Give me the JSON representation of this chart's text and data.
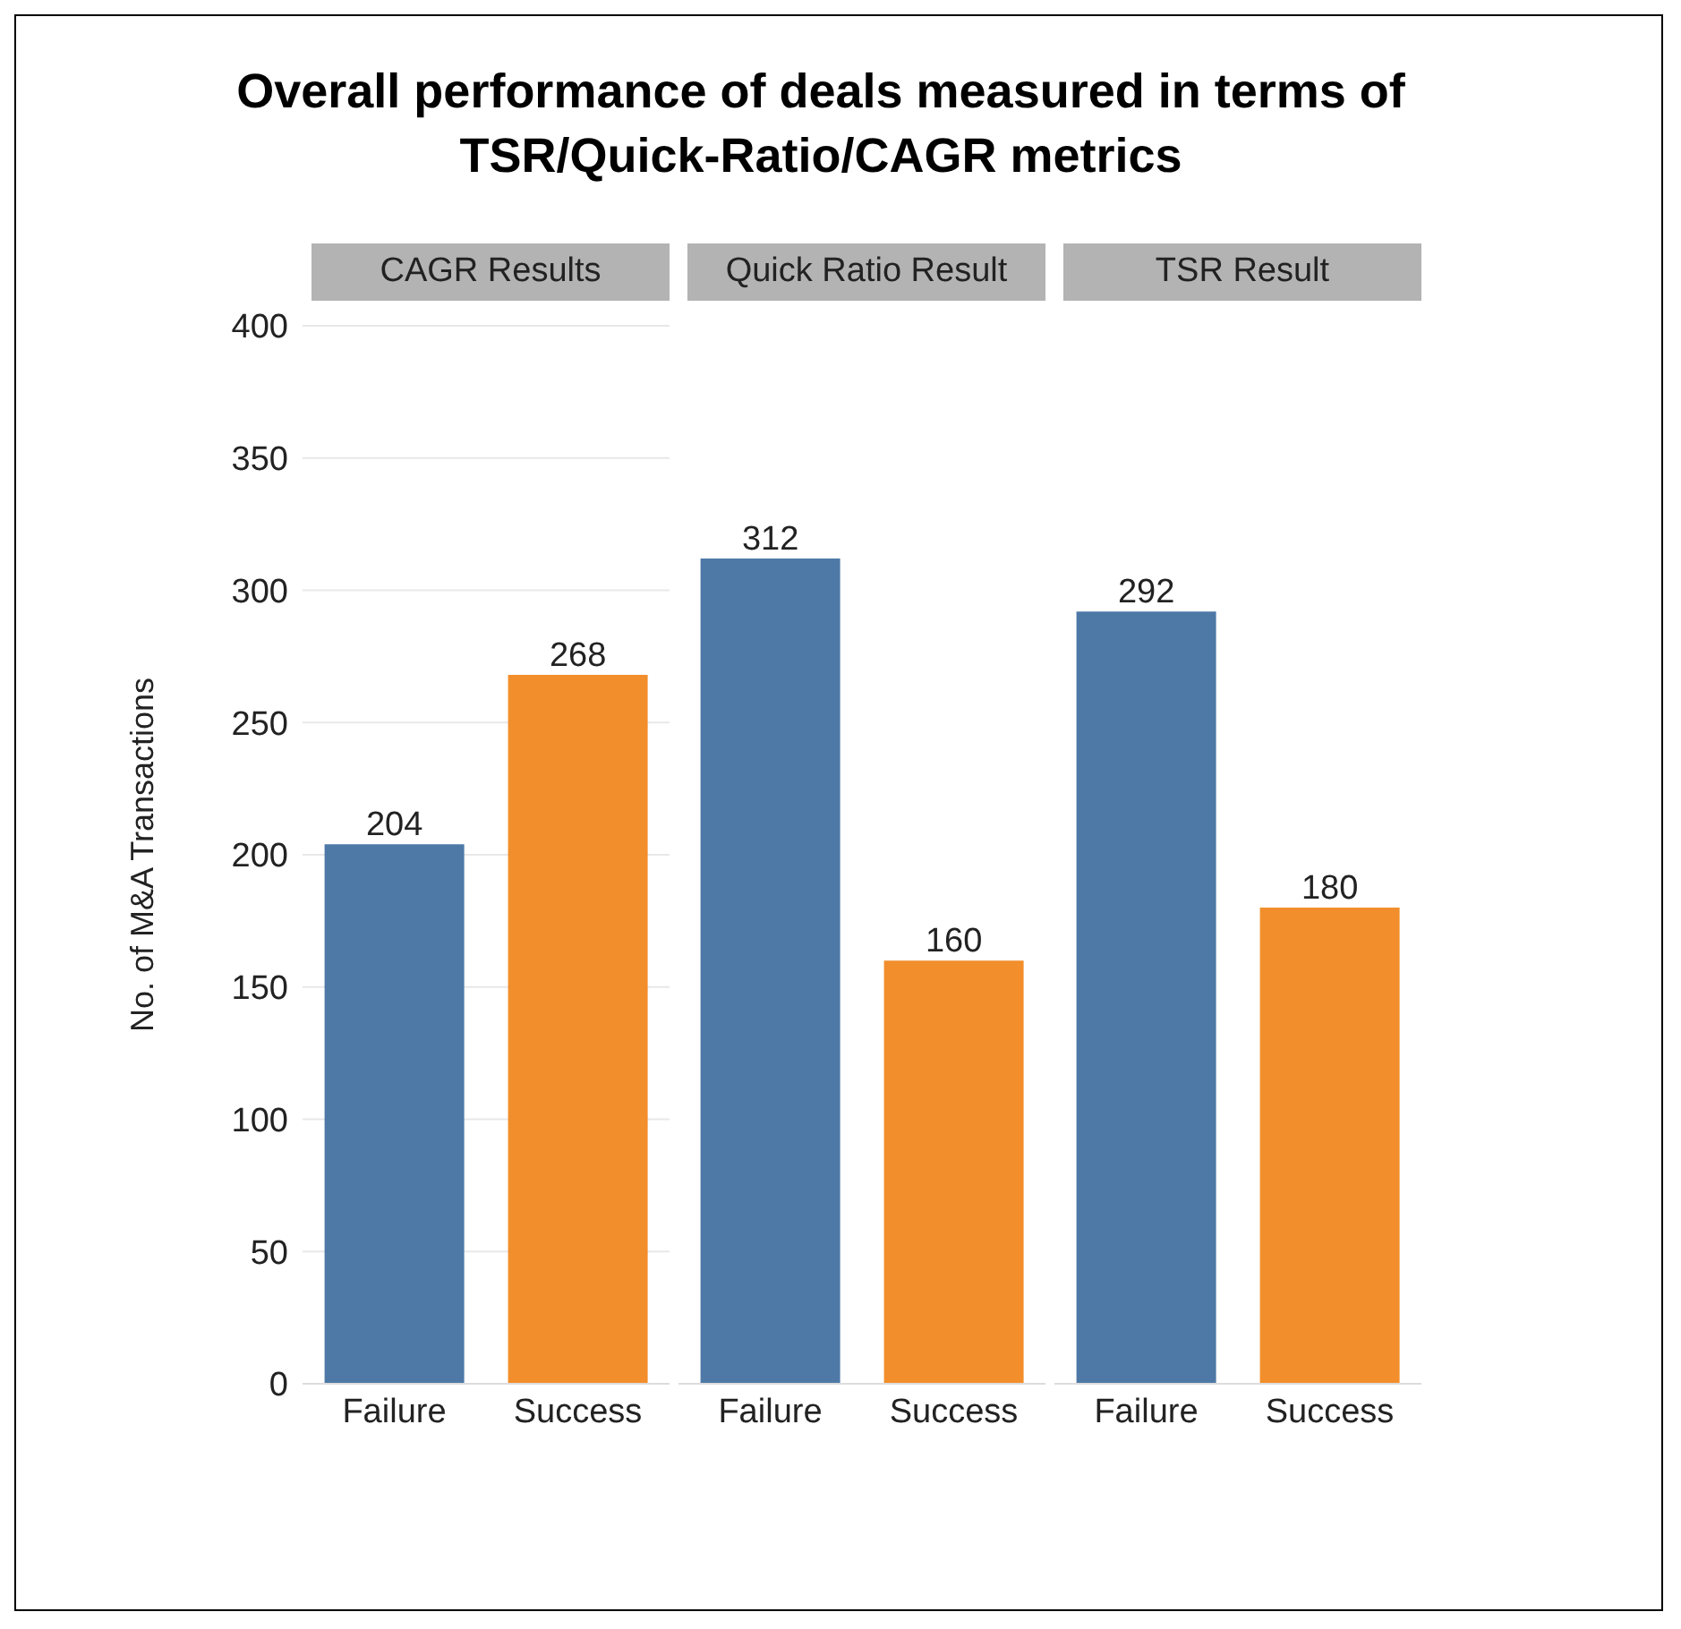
{
  "chart_data": [
    {
      "type": "other",
      "title": "Overall performance of deals measured in terms of\nTSR/Quick-Ratio/CAGR metrics"
    },
    {
      "type": "bar",
      "title": "CAGR Results",
      "ylabel": "No. of M&A Transactions",
      "categories": [
        "Failure",
        "Success"
      ],
      "values": [
        204,
        268
      ],
      "colors": [
        "#4e79a7",
        "#f28e2b"
      ],
      "ylim": [
        0,
        400
      ],
      "yticks": [
        0,
        50,
        100,
        150,
        200,
        250,
        300,
        350,
        400
      ],
      "grid": "y",
      "data_labels": true
    },
    {
      "type": "bar",
      "title": "Quick Ratio Result",
      "categories": [
        "Failure",
        "Success"
      ],
      "values": [
        312,
        160
      ],
      "colors": [
        "#4e79a7",
        "#f28e2b"
      ],
      "ylim": [
        0,
        400
      ],
      "yticks": [
        0,
        50,
        100,
        150,
        200,
        250,
        300,
        350,
        400
      ],
      "grid": "y",
      "data_labels": true,
      "tick_labels": "x"
    },
    {
      "type": "bar",
      "title": "TSR Result",
      "categories": [
        "Failure",
        "Success"
      ],
      "values": [
        292,
        180
      ],
      "colors": [
        "#4e79a7",
        "#f28e2b"
      ],
      "ylim": [
        0,
        400
      ],
      "yticks": [
        0,
        50,
        100,
        150,
        200,
        250,
        300,
        350,
        400
      ],
      "grid": "y",
      "data_labels": true,
      "tick_labels": "x"
    }
  ]
}
